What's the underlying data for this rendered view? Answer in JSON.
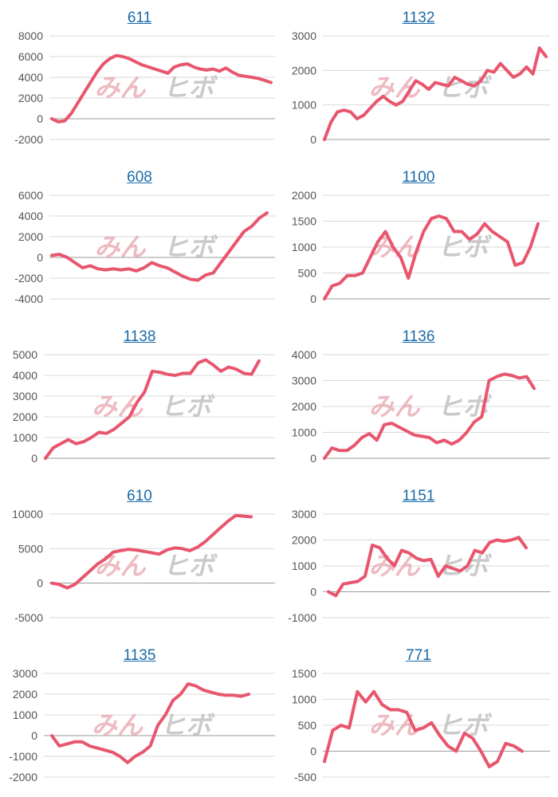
{
  "colors": {
    "line": "#e8566e",
    "title": "#1a6aa8",
    "grid": "#d9d9d9",
    "axis_text": "#555555"
  },
  "watermark": {
    "part1": "みん",
    "part2": "ヒボ"
  },
  "chart_data": [
    {
      "type": "line",
      "title": "611",
      "ylim": [
        -2000,
        8000
      ],
      "yticks": [
        "8000",
        "6000",
        "4000",
        "2000",
        "0",
        "-2000"
      ],
      "series": [
        {
          "values": [
            0,
            -300,
            -200,
            500,
            1500,
            2500,
            3500,
            4500,
            5300,
            5800,
            6100,
            6000,
            5800,
            5500,
            5200,
            5000,
            4800,
            4600,
            4400,
            5000,
            5200,
            5300,
            5000,
            4800,
            4700,
            4800,
            4600,
            4900,
            4500,
            4200,
            4100,
            4000,
            3900,
            3700,
            3500
          ]
        }
      ]
    },
    {
      "type": "line",
      "title": "1132",
      "ylim": [
        0,
        3000
      ],
      "yticks": [
        "3000",
        "2000",
        "1000",
        "0"
      ],
      "series": [
        {
          "values": [
            0,
            500,
            800,
            850,
            800,
            600,
            700,
            900,
            1100,
            1250,
            1100,
            1000,
            1100,
            1400,
            1700,
            1600,
            1450,
            1650,
            1600,
            1550,
            1800,
            1700,
            1600,
            1550,
            1700,
            2000,
            1950,
            2200,
            2000,
            1800,
            1900,
            2100,
            1900,
            2650,
            2400
          ]
        }
      ]
    },
    {
      "type": "line",
      "title": "608",
      "ylim": [
        -4000,
        6000
      ],
      "yticks": [
        "6000",
        "4000",
        "2000",
        "0",
        "-2000",
        "-4000"
      ],
      "series": [
        {
          "values": [
            200,
            300,
            0,
            -500,
            -1000,
            -800,
            -1100,
            -1200,
            -1100,
            -1200,
            -1100,
            -1300,
            -1000,
            -500,
            -800,
            -1000,
            -1400,
            -1800,
            -2100,
            -2200,
            -1700,
            -1500,
            -500,
            500,
            1500,
            2500,
            3000,
            3800,
            4300
          ]
        }
      ]
    },
    {
      "type": "line",
      "title": "1100",
      "ylim": [
        0,
        2000
      ],
      "yticks": [
        "2000",
        "1500",
        "1000",
        "500",
        "0"
      ],
      "series": [
        {
          "values": [
            0,
            250,
            300,
            450,
            450,
            500,
            800,
            1100,
            1300,
            1000,
            800,
            400,
            900,
            1300,
            1550,
            1600,
            1550,
            1300,
            1300,
            1150,
            1250,
            1450,
            1300,
            1200,
            1100,
            650,
            700,
            1000,
            1450
          ]
        }
      ]
    },
    {
      "type": "line",
      "title": "1138",
      "ylim": [
        0,
        5000
      ],
      "yticks": [
        "5000",
        "4000",
        "3000",
        "2000",
        "1000",
        "0"
      ],
      "series": [
        {
          "values": [
            0,
            500,
            700,
            900,
            700,
            800,
            1000,
            1250,
            1200,
            1400,
            1700,
            2000,
            2700,
            3200,
            4200,
            4150,
            4050,
            4000,
            4100,
            4100,
            4600,
            4750,
            4500,
            4200,
            4400,
            4300,
            4100,
            4050,
            4700
          ]
        }
      ]
    },
    {
      "type": "line",
      "title": "1136",
      "ylim": [
        0,
        4000
      ],
      "yticks": [
        "4000",
        "3000",
        "2000",
        "1000",
        "0"
      ],
      "series": [
        {
          "values": [
            0,
            400,
            300,
            300,
            500,
            800,
            950,
            700,
            1300,
            1350,
            1200,
            1050,
            900,
            850,
            800,
            600,
            700,
            550,
            700,
            1000,
            1400,
            1600,
            3000,
            3150,
            3250,
            3200,
            3100,
            3150,
            2700
          ]
        }
      ]
    },
    {
      "type": "line",
      "title": "610",
      "ylim": [
        -5000,
        10000
      ],
      "yticks": [
        "10000",
        "5000",
        "0",
        "-5000"
      ],
      "series": [
        {
          "values": [
            0,
            -200,
            -700,
            -200,
            800,
            1800,
            2800,
            3500,
            4500,
            4700,
            4900,
            4800,
            4600,
            4400,
            4200,
            4800,
            5100,
            5000,
            4700,
            5200,
            6000,
            7000,
            8000,
            9000,
            9800,
            9700,
            9600
          ]
        }
      ]
    },
    {
      "type": "line",
      "title": "1151",
      "ylim": [
        -1000,
        3000
      ],
      "yticks": [
        "3000",
        "2000",
        "1000",
        "0",
        "-1000"
      ],
      "series": [
        {
          "values": [
            0,
            -150,
            300,
            350,
            400,
            600,
            1800,
            1700,
            1300,
            1000,
            1600,
            1500,
            1300,
            1200,
            1250,
            600,
            1000,
            900,
            800,
            1000,
            1600,
            1500,
            1900,
            2000,
            1950,
            2000,
            2100,
            1700
          ]
        }
      ]
    },
    {
      "type": "line",
      "title": "1135",
      "ylim": [
        -2000,
        3000
      ],
      "yticks": [
        "3000",
        "2000",
        "1000",
        "0",
        "-1000",
        "-2000"
      ],
      "series": [
        {
          "values": [
            0,
            -500,
            -400,
            -300,
            -300,
            -500,
            -600,
            -700,
            -800,
            -1000,
            -1300,
            -1000,
            -800,
            -500,
            500,
            1000,
            1700,
            2000,
            2500,
            2400,
            2200,
            2100,
            2000,
            1950,
            1950,
            1900,
            2000
          ]
        }
      ]
    },
    {
      "type": "line",
      "title": "771",
      "ylim": [
        -500,
        1500
      ],
      "yticks": [
        "1500",
        "1000",
        "500",
        "0",
        "-500"
      ],
      "series": [
        {
          "values": [
            -200,
            400,
            500,
            450,
            1150,
            950,
            1150,
            900,
            800,
            800,
            750,
            400,
            450,
            550,
            300,
            100,
            0,
            350,
            250,
            0,
            -300,
            -200,
            150,
            100,
            0
          ]
        }
      ]
    }
  ]
}
